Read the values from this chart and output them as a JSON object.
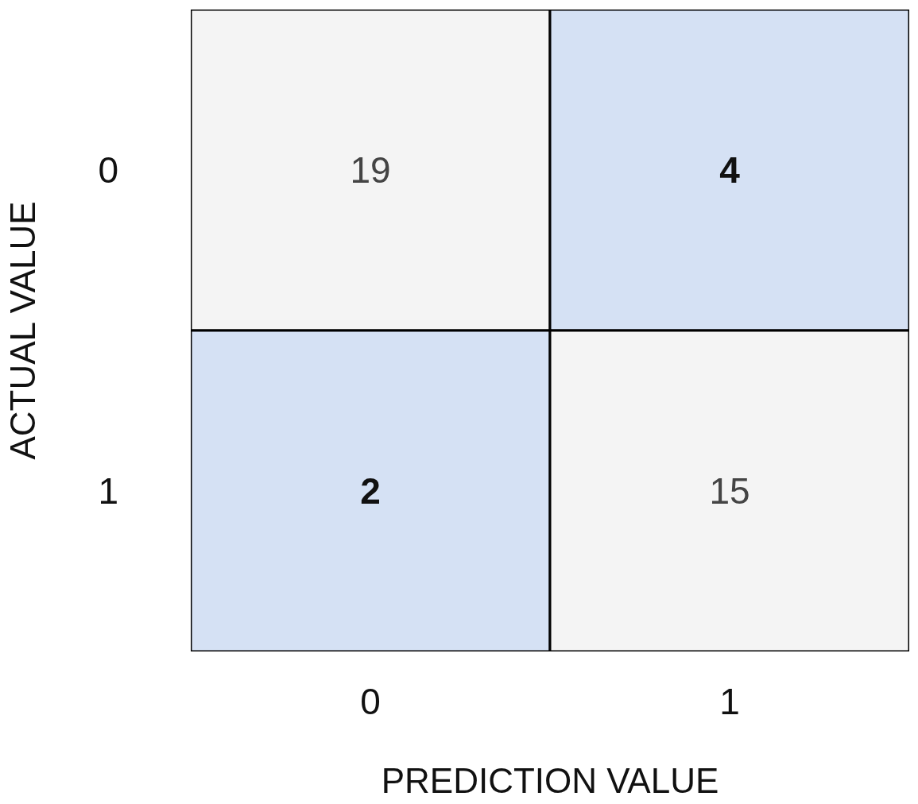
{
  "chart_data": {
    "type": "heatmap",
    "data_labels": true,
    "xlabel": "PREDICTION VALUE",
    "ylabel": "ACTUAL VALUE",
    "categories": [
      "0",
      "1"
    ],
    "y_categories": [
      "0",
      "1"
    ],
    "cells": [
      [
        19,
        4
      ],
      [
        2,
        15
      ]
    ]
  }
}
